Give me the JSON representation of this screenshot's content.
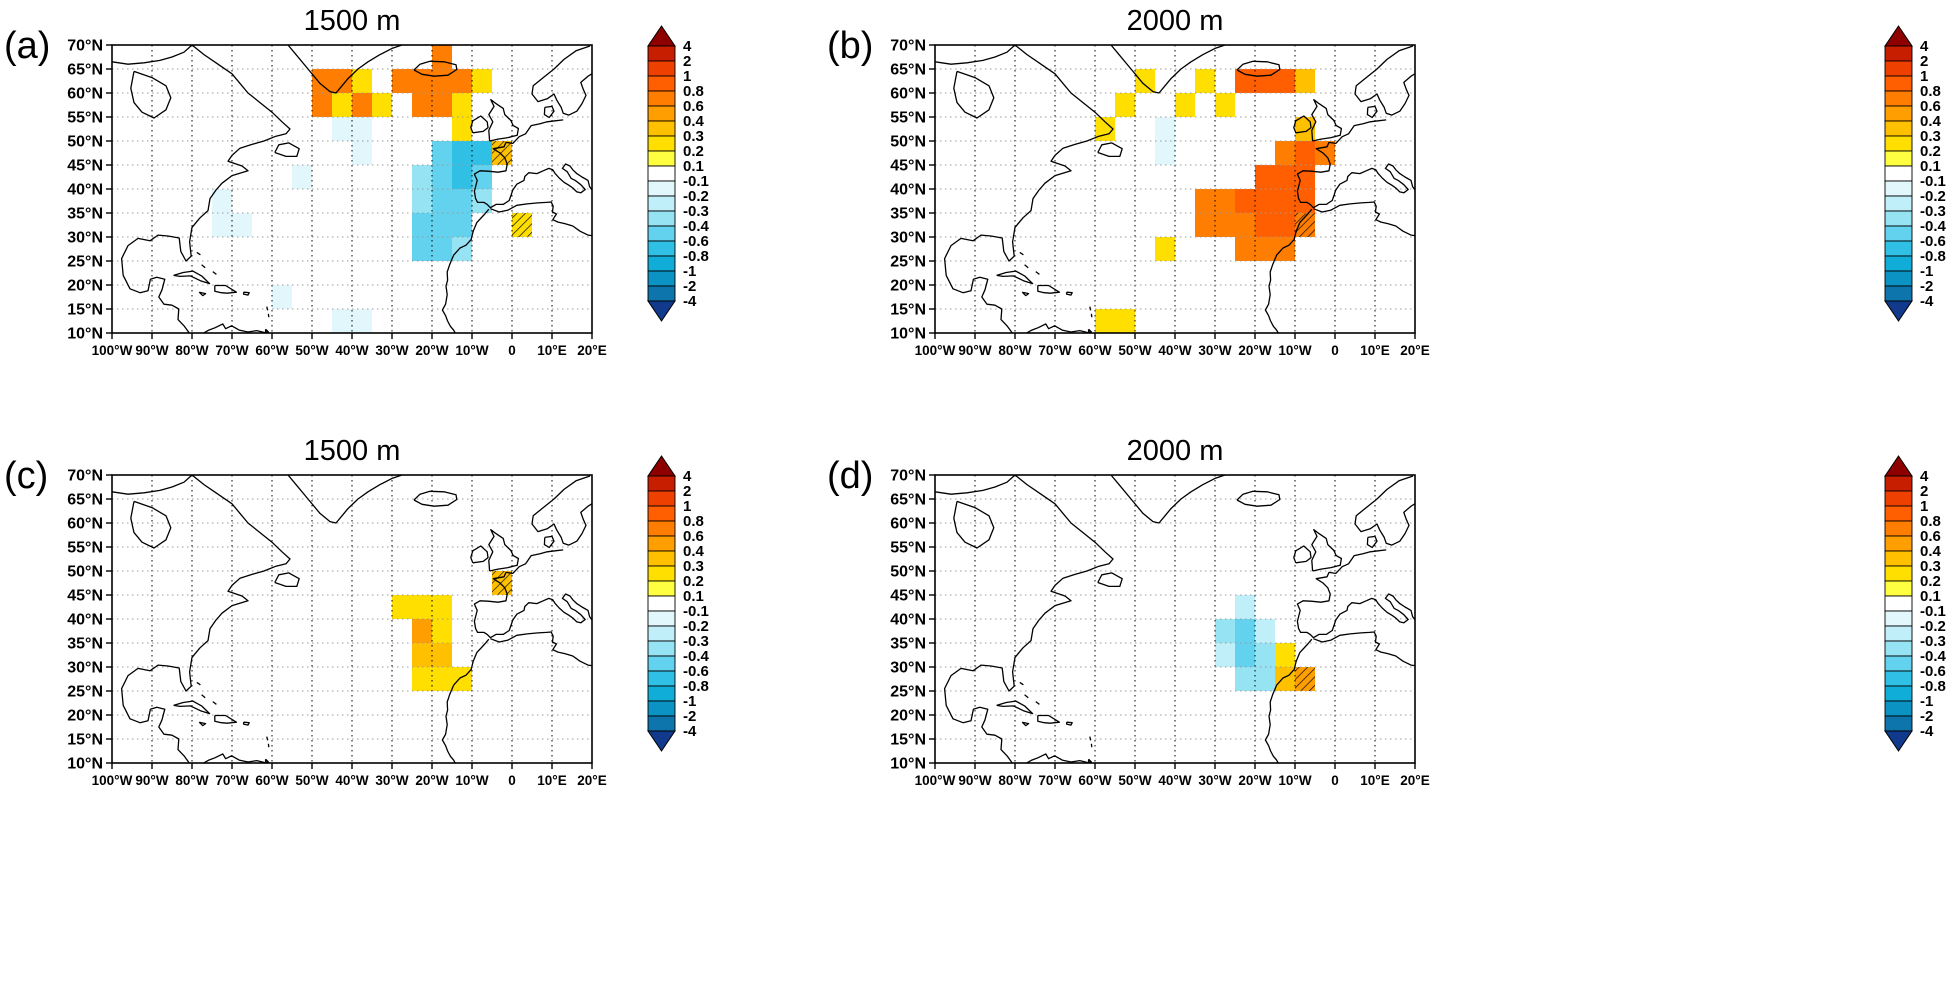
{
  "panels": [
    {
      "label": "(a)",
      "title": "1500 m"
    },
    {
      "label": "(b)",
      "title": "2000 m"
    },
    {
      "label": "(c)",
      "title": "1500 m"
    },
    {
      "label": "(d)",
      "title": "2000 m"
    }
  ],
  "axes": {
    "lat_tick_labels": [
      "70°N",
      "65°N",
      "60°N",
      "55°N",
      "50°N",
      "45°N",
      "40°N",
      "35°N",
      "30°N",
      "25°N",
      "20°N",
      "15°N",
      "10°N"
    ],
    "lon_tick_labels": [
      "100°W",
      "90°W",
      "80°W",
      "70°W",
      "60°W",
      "50°W",
      "40°W",
      "30°W",
      "20°W",
      "10°W",
      "0",
      "10°E",
      "20°E"
    ],
    "lon_min": -100,
    "lon_max": 20,
    "lat_min": 10,
    "lat_max": 70
  },
  "colorbar": {
    "tick_labels": [
      "4",
      "2",
      "1",
      "0.8",
      "0.6",
      "0.4",
      "0.3",
      "0.2",
      "0.1",
      "-0.1",
      "-0.2",
      "-0.3",
      "-0.4",
      "-0.6",
      "-0.8",
      "-1",
      "-2",
      "-4"
    ],
    "colors_top_to_bottom": [
      "#8e0000",
      "#c81e00",
      "#ee4000",
      "#ff5f00",
      "#ff7d00",
      "#ff9e00",
      "#ffc000",
      "#ffdf00",
      "#ffff42",
      "#ffffff",
      "#e2f7fc",
      "#c0effa",
      "#96e3f4",
      "#62d2ee",
      "#30c0e6",
      "#0fadd8",
      "#0b93c4",
      "#0d74ac",
      "#123a8c"
    ]
  },
  "chart_data": [
    {
      "type": "heatmap",
      "panel": "(a)",
      "title": "1500 m",
      "lon_range": [
        -100,
        20
      ],
      "lat_range": [
        10,
        70
      ],
      "cell_size_deg": 5,
      "cells": [
        {
          "lon": -20,
          "lat": 65,
          "v": 0.7
        },
        {
          "lon": -50,
          "lat": 60,
          "v": 0.65
        },
        {
          "lon": -45,
          "lat": 60,
          "v": 0.65
        },
        {
          "lon": -40,
          "lat": 60,
          "v": 0.25
        },
        {
          "lon": -30,
          "lat": 60,
          "v": 0.65
        },
        {
          "lon": -25,
          "lat": 60,
          "v": 0.65
        },
        {
          "lon": -20,
          "lat": 60,
          "v": 0.7
        },
        {
          "lon": -15,
          "lat": 60,
          "v": 0.7
        },
        {
          "lon": -10,
          "lat": 60,
          "v": 0.25
        },
        {
          "lon": -50,
          "lat": 55,
          "v": 0.65
        },
        {
          "lon": -45,
          "lat": 55,
          "v": 0.25
        },
        {
          "lon": -40,
          "lat": 55,
          "v": 0.65
        },
        {
          "lon": -35,
          "lat": 55,
          "v": 0.25
        },
        {
          "lon": -25,
          "lat": 55,
          "v": 0.7
        },
        {
          "lon": -20,
          "lat": 55,
          "v": 0.65
        },
        {
          "lon": -15,
          "lat": 55,
          "v": 0.25
        },
        {
          "lon": -45,
          "lat": 50,
          "v": -0.15
        },
        {
          "lon": -40,
          "lat": 50,
          "v": -0.15
        },
        {
          "lon": -15,
          "lat": 50,
          "v": 0.25
        },
        {
          "lon": -40,
          "lat": 45,
          "v": -0.15
        },
        {
          "lon": -20,
          "lat": 45,
          "v": -0.45
        },
        {
          "lon": -15,
          "lat": 45,
          "v": -0.65
        },
        {
          "lon": -10,
          "lat": 45,
          "v": -0.65
        },
        {
          "lon": -5,
          "lat": 45,
          "v": 0.35,
          "hatch": true
        },
        {
          "lon": -55,
          "lat": 40,
          "v": -0.15
        },
        {
          "lon": -25,
          "lat": 40,
          "v": -0.35
        },
        {
          "lon": -20,
          "lat": 40,
          "v": -0.45
        },
        {
          "lon": -15,
          "lat": 40,
          "v": -0.65
        },
        {
          "lon": -10,
          "lat": 40,
          "v": -0.45
        },
        {
          "lon": -75,
          "lat": 35,
          "v": -0.15
        },
        {
          "lon": -25,
          "lat": 35,
          "v": -0.35
        },
        {
          "lon": -20,
          "lat": 35,
          "v": -0.45
        },
        {
          "lon": -15,
          "lat": 35,
          "v": -0.45
        },
        {
          "lon": -10,
          "lat": 35,
          "v": -0.35
        },
        {
          "lon": -75,
          "lat": 30,
          "v": -0.15
        },
        {
          "lon": -70,
          "lat": 30,
          "v": -0.15
        },
        {
          "lon": -25,
          "lat": 30,
          "v": -0.45
        },
        {
          "lon": -20,
          "lat": 30,
          "v": -0.45
        },
        {
          "lon": -15,
          "lat": 30,
          "v": -0.45
        },
        {
          "lon": 0,
          "lat": 30,
          "v": 0.25,
          "hatch": true
        },
        {
          "lon": -25,
          "lat": 25,
          "v": -0.45
        },
        {
          "lon": -20,
          "lat": 25,
          "v": -0.45
        },
        {
          "lon": -15,
          "lat": 25,
          "v": -0.35
        },
        {
          "lon": -60,
          "lat": 15,
          "v": -0.15
        },
        {
          "lon": -45,
          "lat": 10,
          "v": -0.15
        },
        {
          "lon": -40,
          "lat": 10,
          "v": -0.15
        }
      ]
    },
    {
      "type": "heatmap",
      "panel": "(b)",
      "title": "2000 m",
      "lon_range": [
        -100,
        20
      ],
      "lat_range": [
        10,
        70
      ],
      "cell_size_deg": 5,
      "cells": [
        {
          "lon": -50,
          "lat": 60,
          "v": 0.25
        },
        {
          "lon": -35,
          "lat": 60,
          "v": 0.25
        },
        {
          "lon": -25,
          "lat": 60,
          "v": 0.85
        },
        {
          "lon": -20,
          "lat": 60,
          "v": 0.85
        },
        {
          "lon": -15,
          "lat": 60,
          "v": 0.85
        },
        {
          "lon": -10,
          "lat": 60,
          "v": 0.35
        },
        {
          "lon": -55,
          "lat": 55,
          "v": 0.25
        },
        {
          "lon": -40,
          "lat": 55,
          "v": 0.25
        },
        {
          "lon": -30,
          "lat": 55,
          "v": 0.25
        },
        {
          "lon": -60,
          "lat": 50,
          "v": 0.25
        },
        {
          "lon": -45,
          "lat": 50,
          "v": -0.15
        },
        {
          "lon": -10,
          "lat": 50,
          "v": 0.35
        },
        {
          "lon": -45,
          "lat": 45,
          "v": -0.15
        },
        {
          "lon": -15,
          "lat": 45,
          "v": 0.7
        },
        {
          "lon": -10,
          "lat": 45,
          "v": 0.85
        },
        {
          "lon": -5,
          "lat": 45,
          "v": 0.7
        },
        {
          "lon": -20,
          "lat": 40,
          "v": 0.85
        },
        {
          "lon": -15,
          "lat": 40,
          "v": 0.9
        },
        {
          "lon": -10,
          "lat": 40,
          "v": 0.85
        },
        {
          "lon": -35,
          "lat": 35,
          "v": 0.65
        },
        {
          "lon": -30,
          "lat": 35,
          "v": 0.7
        },
        {
          "lon": -25,
          "lat": 35,
          "v": 0.85
        },
        {
          "lon": -20,
          "lat": 35,
          "v": 0.9
        },
        {
          "lon": -15,
          "lat": 35,
          "v": 0.9
        },
        {
          "lon": -10,
          "lat": 35,
          "v": 0.85
        },
        {
          "lon": -35,
          "lat": 30,
          "v": 0.65
        },
        {
          "lon": -30,
          "lat": 30,
          "v": 0.65
        },
        {
          "lon": -25,
          "lat": 30,
          "v": 0.7
        },
        {
          "lon": -20,
          "lat": 30,
          "v": 0.85
        },
        {
          "lon": -15,
          "lat": 30,
          "v": 0.85
        },
        {
          "lon": -10,
          "lat": 30,
          "v": 0.7,
          "hatch": true
        },
        {
          "lon": -45,
          "lat": 25,
          "v": 0.25
        },
        {
          "lon": -25,
          "lat": 25,
          "v": 0.65
        },
        {
          "lon": -20,
          "lat": 25,
          "v": 0.65
        },
        {
          "lon": -15,
          "lat": 25,
          "v": 0.65
        },
        {
          "lon": -60,
          "lat": 10,
          "v": 0.25
        },
        {
          "lon": -55,
          "lat": 10,
          "v": 0.25
        }
      ]
    },
    {
      "type": "heatmap",
      "panel": "(c)",
      "title": "1500 m",
      "lon_range": [
        -100,
        20
      ],
      "lat_range": [
        10,
        70
      ],
      "cell_size_deg": 5,
      "cells": [
        {
          "lon": -5,
          "lat": 45,
          "v": 0.35,
          "hatch": true
        },
        {
          "lon": -30,
          "lat": 40,
          "v": 0.25
        },
        {
          "lon": -25,
          "lat": 40,
          "v": 0.25
        },
        {
          "lon": -20,
          "lat": 40,
          "v": 0.25
        },
        {
          "lon": -25,
          "lat": 35,
          "v": 0.5
        },
        {
          "lon": -20,
          "lat": 35,
          "v": 0.25
        },
        {
          "lon": -25,
          "lat": 30,
          "v": 0.35
        },
        {
          "lon": -20,
          "lat": 30,
          "v": 0.35
        },
        {
          "lon": -25,
          "lat": 25,
          "v": 0.25
        },
        {
          "lon": -20,
          "lat": 25,
          "v": 0.25
        },
        {
          "lon": -15,
          "lat": 25,
          "v": 0.25
        }
      ]
    },
    {
      "type": "heatmap",
      "panel": "(d)",
      "title": "2000 m",
      "lon_range": [
        -100,
        20
      ],
      "lat_range": [
        10,
        70
      ],
      "cell_size_deg": 5,
      "cells": [
        {
          "lon": -25,
          "lat": 40,
          "v": -0.25
        },
        {
          "lon": -30,
          "lat": 35,
          "v": -0.35
        },
        {
          "lon": -25,
          "lat": 35,
          "v": -0.45
        },
        {
          "lon": -20,
          "lat": 35,
          "v": -0.25
        },
        {
          "lon": -30,
          "lat": 30,
          "v": -0.25
        },
        {
          "lon": -25,
          "lat": 30,
          "v": -0.45
        },
        {
          "lon": -20,
          "lat": 30,
          "v": -0.35
        },
        {
          "lon": -15,
          "lat": 30,
          "v": 0.25
        },
        {
          "lon": -25,
          "lat": 25,
          "v": -0.35
        },
        {
          "lon": -20,
          "lat": 25,
          "v": -0.35
        },
        {
          "lon": -15,
          "lat": 25,
          "v": 0.35
        },
        {
          "lon": -10,
          "lat": 25,
          "v": 0.55,
          "hatch": true
        }
      ]
    }
  ]
}
